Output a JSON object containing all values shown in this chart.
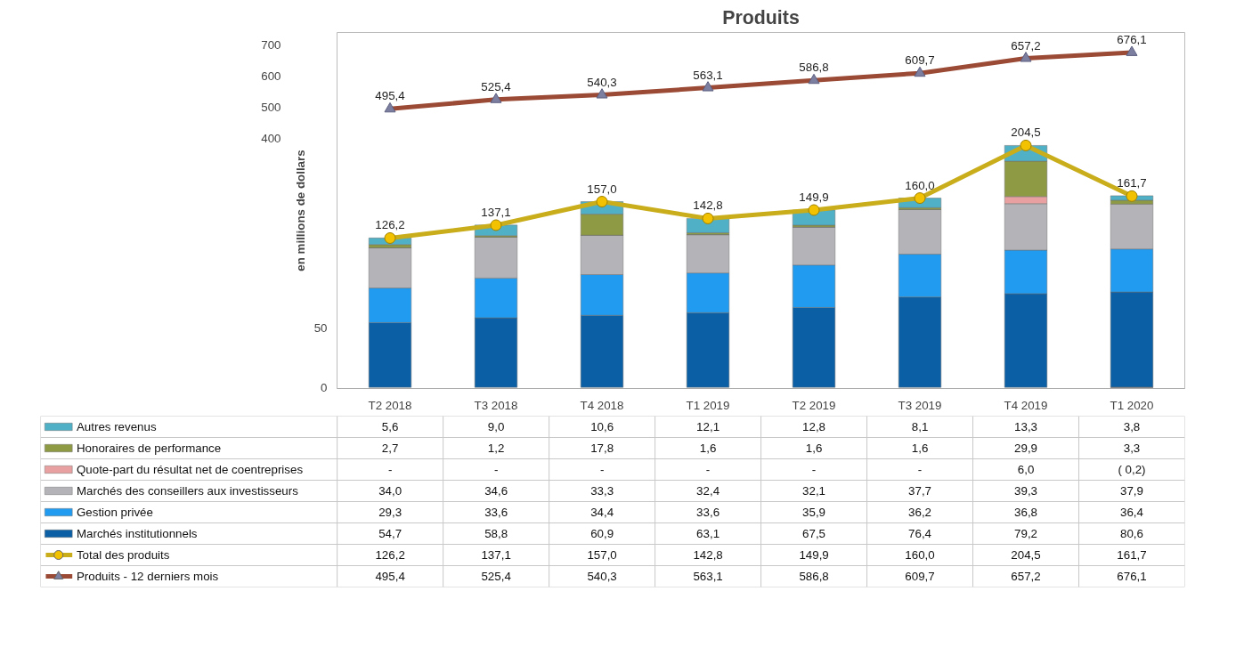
{
  "chart_data": {
    "type": "bar",
    "stacked": true,
    "title": "Produits",
    "ylabel": "en millions de dollars",
    "categories": [
      "T2 2018",
      "T3 2018",
      "T4 2018",
      "T1 2019",
      "T2 2019",
      "T3 2019",
      "T4 2019",
      "T1 2020"
    ],
    "ylim": [
      -1,
      300
    ],
    "yticks": [
      0,
      50
    ],
    "y2lim": [
      -400,
      740
    ],
    "y2ticks": [
      400,
      500,
      600,
      700
    ],
    "grid": false,
    "legend": "bottom",
    "series": [
      {
        "name": "Marchés institutionnels",
        "color": "#0b5fa5",
        "values": [
          54.7,
          58.8,
          60.9,
          63.1,
          67.5,
          76.4,
          79.2,
          80.6
        ],
        "value_labels": [
          "54,7",
          "58,8",
          "60,9",
          "63,1",
          "67,5",
          "76,4",
          "79,2",
          "80,6"
        ]
      },
      {
        "name": "Gestion privée",
        "color": "#219bf0",
        "values": [
          29.3,
          33.6,
          34.4,
          33.6,
          35.9,
          36.2,
          36.8,
          36.4
        ],
        "value_labels": [
          "29,3",
          "33,6",
          "34,4",
          "33,6",
          "35,9",
          "36,2",
          "36,8",
          "36,4"
        ]
      },
      {
        "name": "Marchés des conseillers aux investisseurs",
        "color": "#b4b4b8",
        "values": [
          34.0,
          34.6,
          33.3,
          32.4,
          32.1,
          37.7,
          39.3,
          37.9
        ],
        "value_labels": [
          "34,0",
          "34,6",
          "33,3",
          "32,4",
          "32,1",
          "37,7",
          "39,3",
          "37,9"
        ]
      },
      {
        "name": "Quote-part du résultat net de coentreprises",
        "color": "#e8a0a0",
        "values": [
          0,
          0,
          0,
          0,
          0,
          0,
          6.0,
          -0.2
        ],
        "value_labels": [
          "-",
          "-",
          "-",
          "-",
          "-",
          "-",
          "6,0",
          "( 0,2)"
        ]
      },
      {
        "name": "Honoraires de performance",
        "color": "#8f9a45",
        "values": [
          2.7,
          1.2,
          17.8,
          1.6,
          1.6,
          1.6,
          29.9,
          3.3
        ],
        "value_labels": [
          "2,7",
          "1,2",
          "17,8",
          "1,6",
          "1,6",
          "1,6",
          "29,9",
          "3,3"
        ]
      },
      {
        "name": "Autres revenus",
        "color": "#4fb0c6",
        "values": [
          5.6,
          9.0,
          10.6,
          12.1,
          12.8,
          8.1,
          13.3,
          3.8
        ],
        "value_labels": [
          "5,6",
          "9,0",
          "10,6",
          "12,1",
          "12,8",
          "8,1",
          "13,3",
          "3,8"
        ]
      },
      {
        "name": "Total des produits",
        "type": "line",
        "marker": "circle",
        "color": "#c9ad1a",
        "values": [
          126.2,
          137.1,
          157.0,
          142.8,
          149.9,
          160.0,
          204.5,
          161.7
        ],
        "value_labels": [
          "126,2",
          "137,1",
          "157,0",
          "142,8",
          "149,9",
          "160,0",
          "204,5",
          "161,7"
        ]
      },
      {
        "name": "Produits - 12 derniers mois",
        "type": "line",
        "marker": "triangle",
        "axis": "y2",
        "color": "#9b4a35",
        "values": [
          495.4,
          525.4,
          540.3,
          563.1,
          586.8,
          609.7,
          657.2,
          676.1
        ],
        "value_labels": [
          "495,4",
          "525,4",
          "540,3",
          "563,1",
          "586,8",
          "609,7",
          "657,2",
          "676,1"
        ]
      }
    ]
  }
}
